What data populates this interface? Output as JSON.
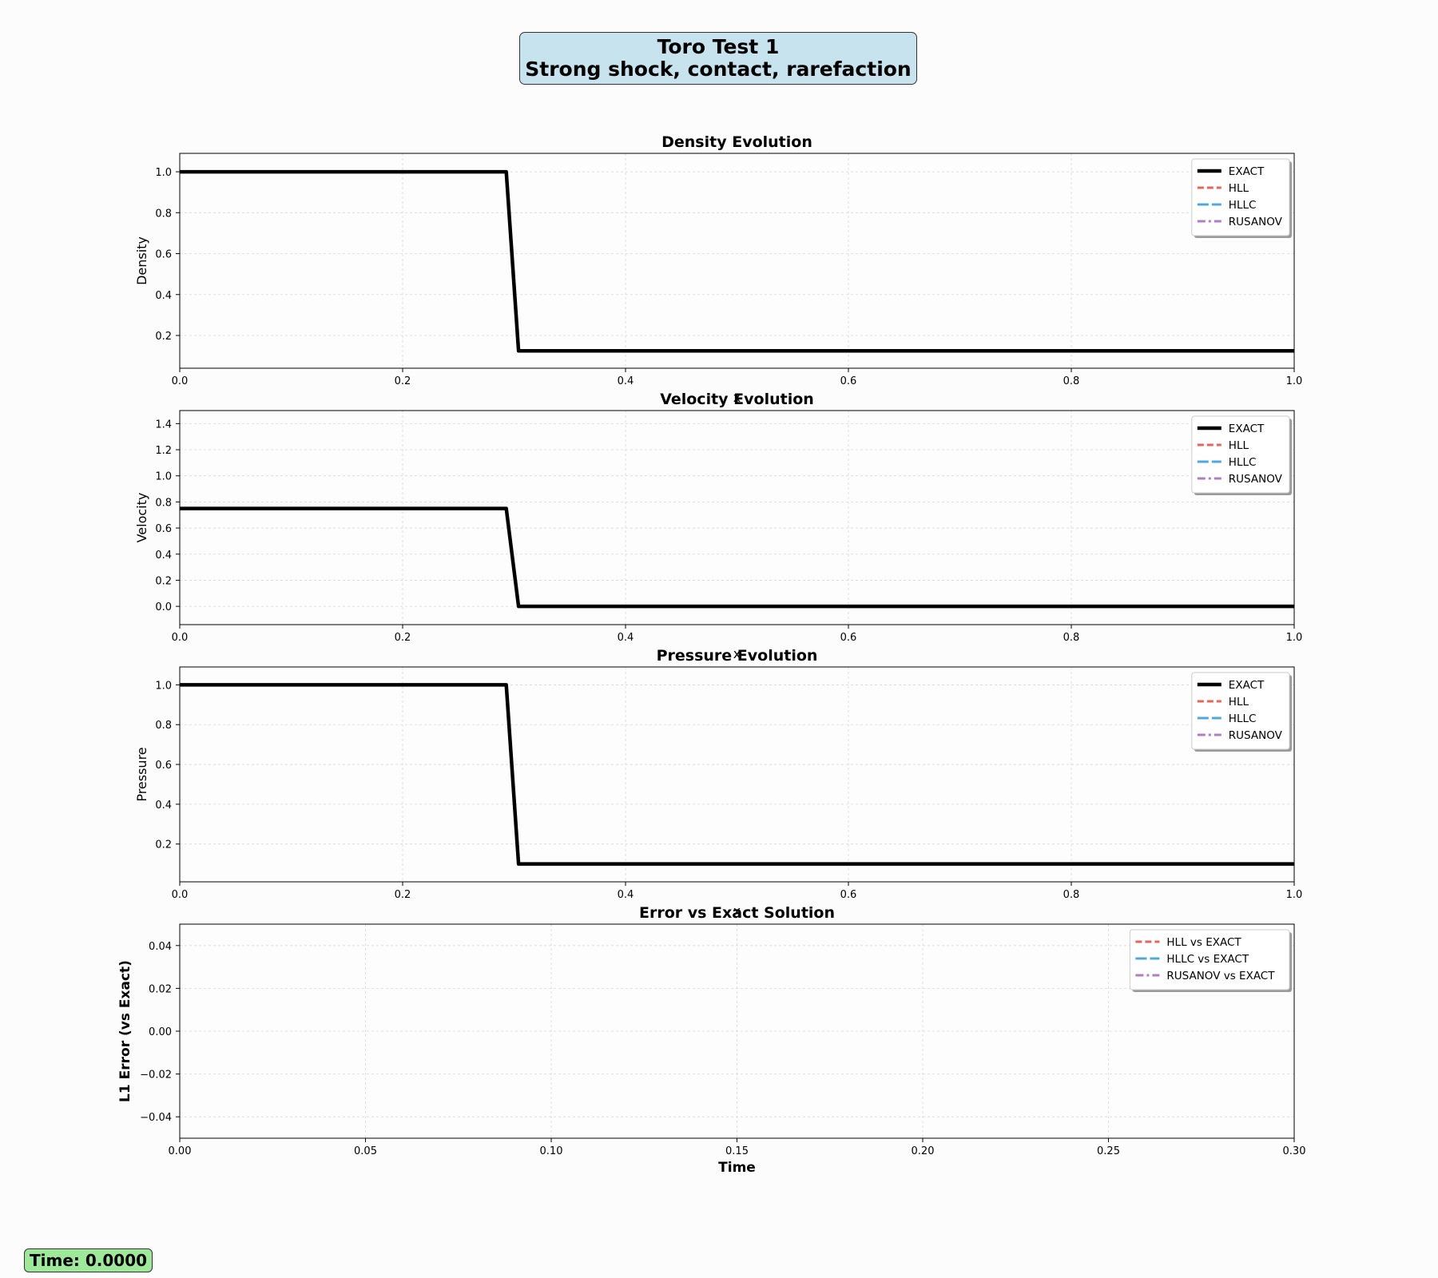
{
  "figure": {
    "title_line1": "Toro Test 1",
    "title_line2": "Strong shock, contact, rarefaction",
    "time_label": "Time: 0.0000"
  },
  "colors": {
    "EXACT": "#000000",
    "HLL": "#e8635a",
    "HLLC": "#4fa8e0",
    "RUSANOV": "#b07cc6",
    "title_box_bg": "#c6e3ee",
    "time_box_bg": "#9ee89a"
  },
  "chart_data": [
    {
      "type": "line",
      "title": "Density Evolution",
      "xlabel": "x",
      "ylabel": "Density",
      "xlim": [
        0.0,
        1.0
      ],
      "ylim": [
        0.04,
        1.09
      ],
      "xticks": [
        0.0,
        0.2,
        0.4,
        0.6,
        0.8,
        1.0
      ],
      "yticks": [
        0.2,
        0.4,
        0.6,
        0.8,
        1.0
      ],
      "grid": true,
      "legend_position": "top-right",
      "series": [
        {
          "name": "EXACT",
          "style": "solid-thick",
          "x": [
            0.0,
            0.293,
            0.304,
            1.0
          ],
          "y": [
            1.0,
            1.0,
            0.125,
            0.125
          ]
        },
        {
          "name": "HLL",
          "style": "dashed",
          "x": [],
          "y": []
        },
        {
          "name": "HLLC",
          "style": "long-dashed",
          "x": [],
          "y": []
        },
        {
          "name": "RUSANOV",
          "style": "dash-dot",
          "x": [],
          "y": []
        }
      ]
    },
    {
      "type": "line",
      "title": "Velocity Evolution",
      "xlabel": "x",
      "ylabel": "Velocity",
      "xlim": [
        0.0,
        1.0
      ],
      "ylim": [
        -0.14,
        1.5
      ],
      "xticks": [
        0.0,
        0.2,
        0.4,
        0.6,
        0.8,
        1.0
      ],
      "yticks": [
        0.0,
        0.2,
        0.4,
        0.6,
        0.8,
        1.0,
        1.2,
        1.4
      ],
      "grid": true,
      "legend_position": "top-right",
      "series": [
        {
          "name": "EXACT",
          "style": "solid-thick",
          "x": [
            0.0,
            0.293,
            0.304,
            1.0
          ],
          "y": [
            0.75,
            0.75,
            0.0,
            0.0
          ]
        },
        {
          "name": "HLL",
          "style": "dashed",
          "x": [],
          "y": []
        },
        {
          "name": "HLLC",
          "style": "long-dashed",
          "x": [],
          "y": []
        },
        {
          "name": "RUSANOV",
          "style": "dash-dot",
          "x": [],
          "y": []
        }
      ]
    },
    {
      "type": "line",
      "title": "Pressure Evolution",
      "xlabel": "x",
      "ylabel": "Pressure",
      "xlim": [
        0.0,
        1.0
      ],
      "ylim": [
        0.01,
        1.09
      ],
      "xticks": [
        0.0,
        0.2,
        0.4,
        0.6,
        0.8,
        1.0
      ],
      "yticks": [
        0.2,
        0.4,
        0.6,
        0.8,
        1.0
      ],
      "grid": true,
      "legend_position": "top-right",
      "series": [
        {
          "name": "EXACT",
          "style": "solid-thick",
          "x": [
            0.0,
            0.293,
            0.304,
            1.0
          ],
          "y": [
            1.0,
            1.0,
            0.1,
            0.1
          ]
        },
        {
          "name": "HLL",
          "style": "dashed",
          "x": [],
          "y": []
        },
        {
          "name": "HLLC",
          "style": "long-dashed",
          "x": [],
          "y": []
        },
        {
          "name": "RUSANOV",
          "style": "dash-dot",
          "x": [],
          "y": []
        }
      ]
    },
    {
      "type": "line",
      "title": "Error vs Exact Solution",
      "xlabel": "Time",
      "ylabel": "L1 Error (vs Exact)",
      "xlim": [
        0.0,
        0.3
      ],
      "ylim": [
        -0.05,
        0.05
      ],
      "xticks": [
        0.0,
        0.05,
        0.1,
        0.15,
        0.2,
        0.25,
        0.3
      ],
      "yticks": [
        -0.04,
        -0.02,
        0.0,
        0.02,
        0.04
      ],
      "grid": true,
      "legend_position": "top-right",
      "series": [
        {
          "name": "HLL vs EXACT",
          "style": "dashed",
          "x": [],
          "y": []
        },
        {
          "name": "HLLC vs EXACT",
          "style": "long-dashed",
          "x": [],
          "y": []
        },
        {
          "name": "RUSANOV vs EXACT",
          "style": "dash-dot",
          "x": [],
          "y": []
        }
      ]
    }
  ]
}
